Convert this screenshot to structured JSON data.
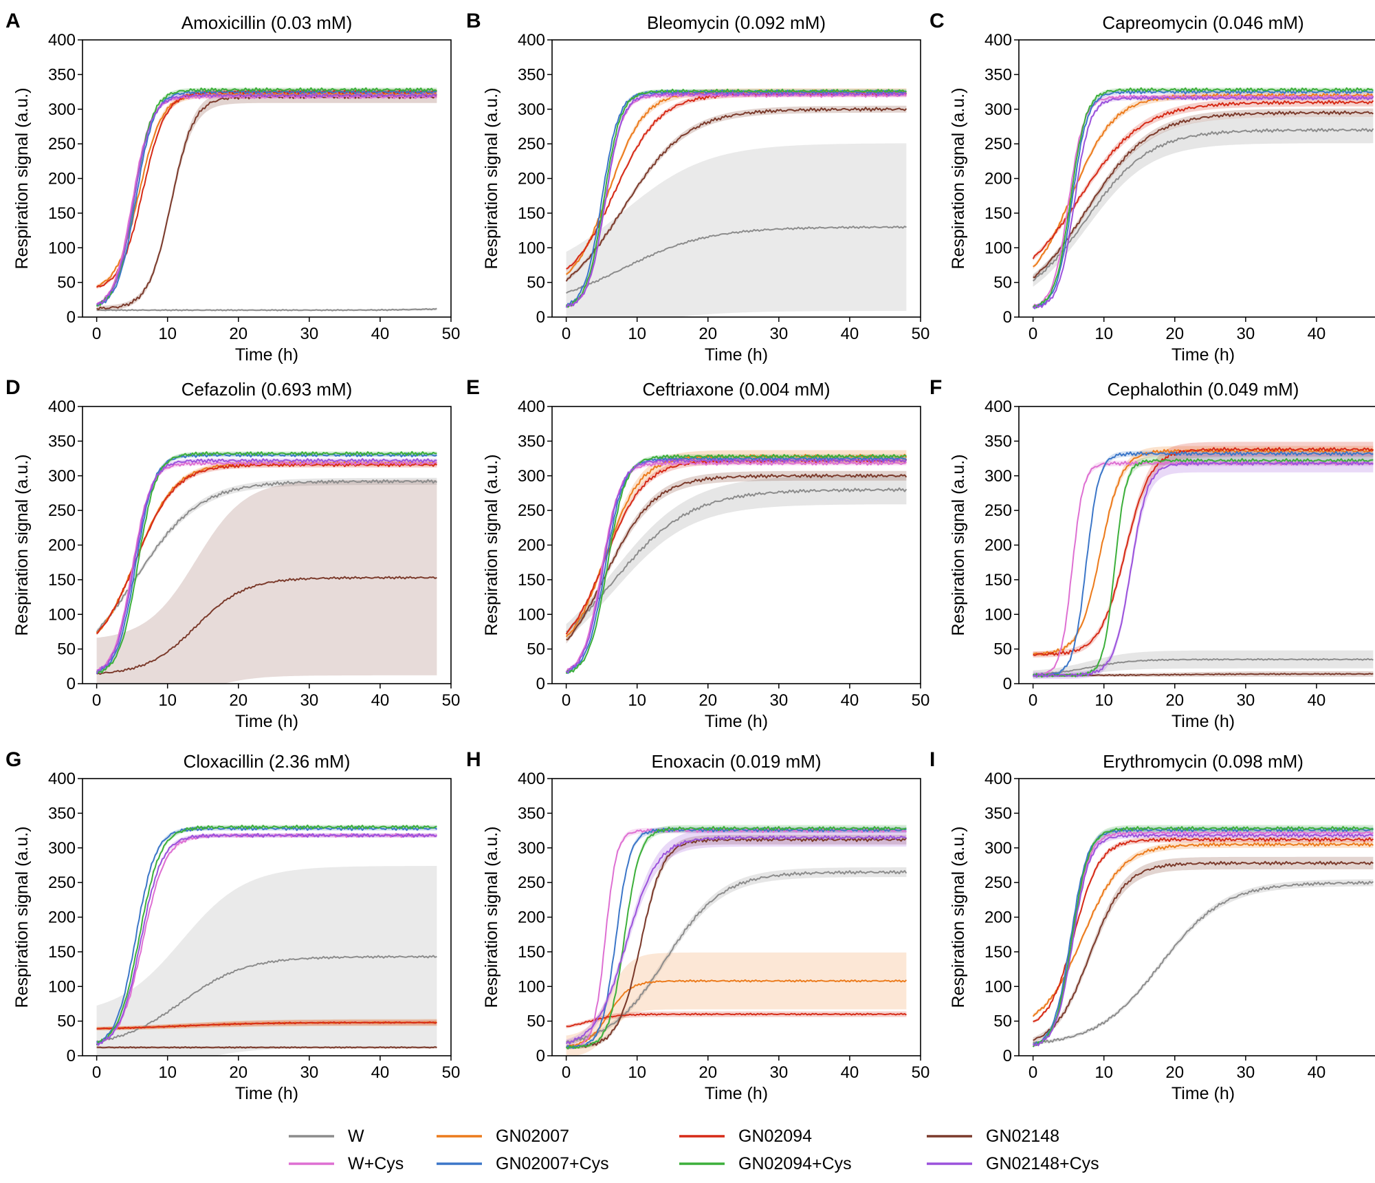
{
  "figure": {
    "xlabel": "Time (h)",
    "ylabel": "Respiration signal (a.u.)",
    "xticks": [
      0,
      10,
      20,
      30,
      40,
      50
    ],
    "yticks": [
      0,
      50,
      100,
      150,
      200,
      250,
      300,
      350,
      400
    ]
  },
  "chart_data": [
    {
      "type": "line",
      "panel": "A",
      "title": "Amoxicillin (0.03 mM)",
      "xlabel": "Time (h)",
      "ylabel": "Respiration signal (a.u.)",
      "xlim": [
        -2,
        50
      ],
      "ylim": [
        0,
        400
      ],
      "series": [
        {
          "name": "W",
          "params": [
            10,
            12,
            45,
            2.5
          ],
          "band": 1
        },
        {
          "name": "GN02007",
          "params": [
            38,
            322,
            6,
            1.6
          ],
          "band": 4
        },
        {
          "name": "GN02094",
          "params": [
            38,
            325,
            6.5,
            1.6
          ],
          "band": 3
        },
        {
          "name": "GN02148",
          "params": [
            12,
            318,
            10.5,
            1.6
          ],
          "band": 8
        },
        {
          "name": "W+Cys",
          "params": [
            12,
            318,
            5,
            1.3
          ],
          "band": 2
        },
        {
          "name": "GN02007+Cys",
          "params": [
            12,
            325,
            5.5,
            1.3
          ],
          "band": 2
        },
        {
          "name": "GN02094+Cys",
          "params": [
            12,
            328,
            5.3,
            1.3
          ],
          "band": 2
        },
        {
          "name": "GN02148+Cys",
          "params": [
            12,
            320,
            5.2,
            1.3
          ],
          "band": 2
        }
      ]
    },
    {
      "type": "line",
      "panel": "B",
      "title": "Bleomycin (0.092 mM)",
      "xlabel": "Time (h)",
      "ylabel": "Respiration signal (a.u.)",
      "xlim": [
        -2,
        50
      ],
      "ylim": [
        0,
        400
      ],
      "series": [
        {
          "name": "W",
          "params": [
            10,
            130,
            8,
            6
          ],
          "band": 120
        },
        {
          "name": "GN02007",
          "params": [
            38,
            325,
            6,
            2.5
          ],
          "band": 4
        },
        {
          "name": "GN02094",
          "params": [
            38,
            322,
            6.8,
            3.2
          ],
          "band": 3
        },
        {
          "name": "GN02148",
          "params": [
            12,
            300,
            8,
            4.5
          ],
          "band": 4
        },
        {
          "name": "W+Cys",
          "params": [
            12,
            320,
            5.5,
            1.2
          ],
          "band": 2
        },
        {
          "name": "GN02007+Cys",
          "params": [
            12,
            325,
            5.0,
            1.2
          ],
          "band": 2
        },
        {
          "name": "GN02094+Cys",
          "params": [
            12,
            326,
            5.3,
            1.2
          ],
          "band": 2
        },
        {
          "name": "GN02148+Cys",
          "params": [
            12,
            322,
            5.5,
            1.2
          ],
          "band": 2
        }
      ]
    },
    {
      "type": "line",
      "panel": "C",
      "title": "Capreomycin (0.046 mM)",
      "xlabel": "Time (h)",
      "ylabel": "Respiration signal (a.u.)",
      "xlim": [
        -2,
        50
      ],
      "ylim": [
        0,
        400
      ],
      "series": [
        {
          "name": "W",
          "params": [
            12,
            270,
            7.5,
            4.5
          ],
          "band": 18
        },
        {
          "name": "GN02007",
          "params": [
            32,
            320,
            5.5,
            3.0
          ],
          "band": 4
        },
        {
          "name": "GN02094",
          "params": [
            32,
            310,
            6.5,
            4.5
          ],
          "band": 5
        },
        {
          "name": "GN02148",
          "params": [
            12,
            295,
            7.5,
            4.5
          ],
          "band": 5
        },
        {
          "name": "W+Cys",
          "params": [
            12,
            318,
            5,
            1.1
          ],
          "band": 2
        },
        {
          "name": "GN02007+Cys",
          "params": [
            12,
            325,
            5.5,
            1.1
          ],
          "band": 2
        },
        {
          "name": "GN02094+Cys",
          "params": [
            12,
            328,
            5.3,
            1.1
          ],
          "band": 2
        },
        {
          "name": "GN02148+Cys",
          "params": [
            12,
            316,
            5.8,
            1.1
          ],
          "band": 2
        }
      ]
    },
    {
      "type": "line",
      "panel": "D",
      "title": "Cefazolin (0.693 mM)",
      "xlabel": "Time (h)",
      "ylabel": "Respiration signal (a.u.)",
      "xlim": [
        -2,
        50
      ],
      "ylim": [
        0,
        400
      ],
      "series": [
        {
          "name": "W",
          "params": [
            12,
            292,
            5.5,
            4.5
          ],
          "band": 4
        },
        {
          "name": "GN02007",
          "params": [
            38,
            318,
            5.5,
            2.8
          ],
          "band": 3
        },
        {
          "name": "GN02094",
          "params": [
            38,
            316,
            5.5,
            2.8
          ],
          "band": 3
        },
        {
          "name": "GN02148",
          "params": [
            12,
            153,
            14,
            3.5
          ],
          "band": 140
        },
        {
          "name": "W+Cys",
          "params": [
            12,
            318,
            5,
            1.3
          ],
          "band": 2
        },
        {
          "name": "GN02007+Cys",
          "params": [
            12,
            330,
            5.5,
            1.3
          ],
          "band": 2
        },
        {
          "name": "GN02094+Cys",
          "params": [
            12,
            332,
            5.8,
            1.3
          ],
          "band": 2
        },
        {
          "name": "GN02148+Cys",
          "params": [
            12,
            322,
            5.2,
            1.3
          ],
          "band": 2
        }
      ]
    },
    {
      "type": "line",
      "panel": "E",
      "title": "Ceftriaxone (0.004 mM)",
      "xlabel": "Time (h)",
      "ylabel": "Respiration signal (a.u.)",
      "xlim": [
        -2,
        50
      ],
      "ylim": [
        0,
        400
      ],
      "series": [
        {
          "name": "W",
          "params": [
            12,
            280,
            6.5,
            5.5
          ],
          "band": 20
        },
        {
          "name": "GN02007",
          "params": [
            38,
            328,
            5.5,
            2.5
          ],
          "band": 8
        },
        {
          "name": "GN02094",
          "params": [
            38,
            322,
            5.5,
            2.8
          ],
          "band": 4
        },
        {
          "name": "GN02148",
          "params": [
            12,
            300,
            5.5,
            3.5
          ],
          "band": 6
        },
        {
          "name": "W+Cys",
          "params": [
            12,
            318,
            5,
            1.3
          ],
          "band": 2
        },
        {
          "name": "GN02007+Cys",
          "params": [
            12,
            325,
            5.5,
            1.3
          ],
          "band": 2
        },
        {
          "name": "GN02094+Cys",
          "params": [
            12,
            328,
            5.8,
            1.3
          ],
          "band": 2
        },
        {
          "name": "GN02148+Cys",
          "params": [
            12,
            322,
            5.2,
            1.3
          ],
          "band": 2
        }
      ]
    },
    {
      "type": "line",
      "panel": "F",
      "title": "Cephalothin (0.049 mM)",
      "xlabel": "Time (h)",
      "ylabel": "Respiration signal (a.u.)",
      "xlim": [
        -2,
        50
      ],
      "ylim": [
        0,
        400
      ],
      "series": [
        {
          "name": "W",
          "params": [
            12,
            35,
            8,
            3
          ],
          "band": 12
        },
        {
          "name": "GN02007",
          "params": [
            42,
            336,
            9.5,
            1.5
          ],
          "band": 6
        },
        {
          "name": "GN02094",
          "params": [
            42,
            338,
            13,
            1.8
          ],
          "band": 10
        },
        {
          "name": "GN02148",
          "params": [
            12,
            14,
            20,
            5
          ],
          "band": 3
        },
        {
          "name": "W+Cys",
          "params": [
            12,
            318,
            5.5,
            0.8
          ],
          "band": 3
        },
        {
          "name": "GN02007+Cys",
          "params": [
            12,
            332,
            7.5,
            0.9
          ],
          "band": 3
        },
        {
          "name": "GN02094+Cys",
          "params": [
            12,
            322,
            11.5,
            0.8
          ],
          "band": 5
        },
        {
          "name": "GN02148+Cys",
          "params": [
            12,
            318,
            13.8,
            1.2
          ],
          "band": 12
        }
      ]
    },
    {
      "type": "line",
      "panel": "G",
      "title": "Cloxacillin (2.36 mM)",
      "xlabel": "Time (h)",
      "ylabel": "Respiration signal (a.u.)",
      "xlim": [
        -2,
        50
      ],
      "ylim": [
        0,
        400
      ],
      "series": [
        {
          "name": "W",
          "params": [
            12,
            143,
            12,
            4.5
          ],
          "band": 130
        },
        {
          "name": "GN02007",
          "params": [
            38,
            48,
            12,
            6
          ],
          "band": 4
        },
        {
          "name": "GN02094",
          "params": [
            38,
            48,
            12,
            6
          ],
          "band": 3
        },
        {
          "name": "GN02148",
          "params": [
            12,
            12,
            20,
            5
          ],
          "band": 2
        },
        {
          "name": "W+Cys",
          "params": [
            12,
            318,
            6.5,
            1.6
          ],
          "band": 2
        },
        {
          "name": "GN02007+Cys",
          "params": [
            12,
            328,
            5.5,
            1.4
          ],
          "band": 2
        },
        {
          "name": "GN02094+Cys",
          "params": [
            12,
            330,
            6.0,
            1.5
          ],
          "band": 2
        },
        {
          "name": "GN02148+Cys",
          "params": [
            12,
            318,
            6.2,
            1.5
          ],
          "band": 2
        }
      ]
    },
    {
      "type": "line",
      "panel": "H",
      "title": "Enoxacin (0.019 mM)",
      "xlabel": "Time (h)",
      "ylabel": "Respiration signal (a.u.)",
      "xlim": [
        -2,
        50
      ],
      "ylim": [
        0,
        400
      ],
      "series": [
        {
          "name": "W",
          "params": [
            12,
            265,
            14,
            4
          ],
          "band": 6
        },
        {
          "name": "GN02007",
          "params": [
            12,
            108,
            6,
            1.5
          ],
          "band": 40
        },
        {
          "name": "GN02094",
          "params": [
            38,
            60,
            3,
            2
          ],
          "band": 3
        },
        {
          "name": "GN02148",
          "params": [
            12,
            312,
            10.5,
            1.6
          ],
          "band": 6
        },
        {
          "name": "W+Cys",
          "params": [
            12,
            325,
            5.5,
            0.8
          ],
          "band": 3
        },
        {
          "name": "GN02007+Cys",
          "params": [
            12,
            326,
            7.0,
            1.0
          ],
          "band": 3
        },
        {
          "name": "GN02094+Cys",
          "params": [
            12,
            328,
            8.2,
            1.1
          ],
          "band": 4
        },
        {
          "name": "GN02148+Cys",
          "params": [
            12,
            315,
            8.5,
            2.2
          ],
          "band": 12
        }
      ]
    },
    {
      "type": "line",
      "panel": "I",
      "title": "Erythromycin (0.098 mM)",
      "xlabel": "Time (h)",
      "ylabel": "Respiration signal (a.u.)",
      "xlim": [
        -2,
        50
      ],
      "ylim": [
        0,
        400
      ],
      "series": [
        {
          "name": "W",
          "params": [
            14,
            250,
            18,
            4.5
          ],
          "band": 4
        },
        {
          "name": "GN02007",
          "params": [
            38,
            305,
            7.0,
            2.8
          ],
          "band": 4
        },
        {
          "name": "GN02094",
          "params": [
            38,
            312,
            5.8,
            1.8
          ],
          "band": 3
        },
        {
          "name": "GN02148",
          "params": [
            12,
            278,
            8.0,
            2.5
          ],
          "band": 8
        },
        {
          "name": "W+Cys",
          "params": [
            12,
            322,
            5.5,
            1.2
          ],
          "band": 3
        },
        {
          "name": "GN02007+Cys",
          "params": [
            12,
            326,
            5.3,
            1.2
          ],
          "band": 3
        },
        {
          "name": "GN02094+Cys",
          "params": [
            12,
            328,
            5.5,
            1.2
          ],
          "band": 4
        },
        {
          "name": "GN02148+Cys",
          "params": [
            12,
            318,
            5.6,
            1.2
          ],
          "band": 3
        }
      ]
    }
  ],
  "legend": {
    "items": [
      {
        "name": "W",
        "color": "#8c8c8c"
      },
      {
        "name": "GN02007",
        "color": "#ec7b1c"
      },
      {
        "name": "GN02094",
        "color": "#d62a16"
      },
      {
        "name": "GN02148",
        "color": "#7b3a2b"
      },
      {
        "name": "W+Cys",
        "color": "#de6fd2"
      },
      {
        "name": "GN02007+Cys",
        "color": "#3b76c8"
      },
      {
        "name": "GN02094+Cys",
        "color": "#3caf3a"
      },
      {
        "name": "GN02148+Cys",
        "color": "#9b52dc"
      }
    ]
  }
}
